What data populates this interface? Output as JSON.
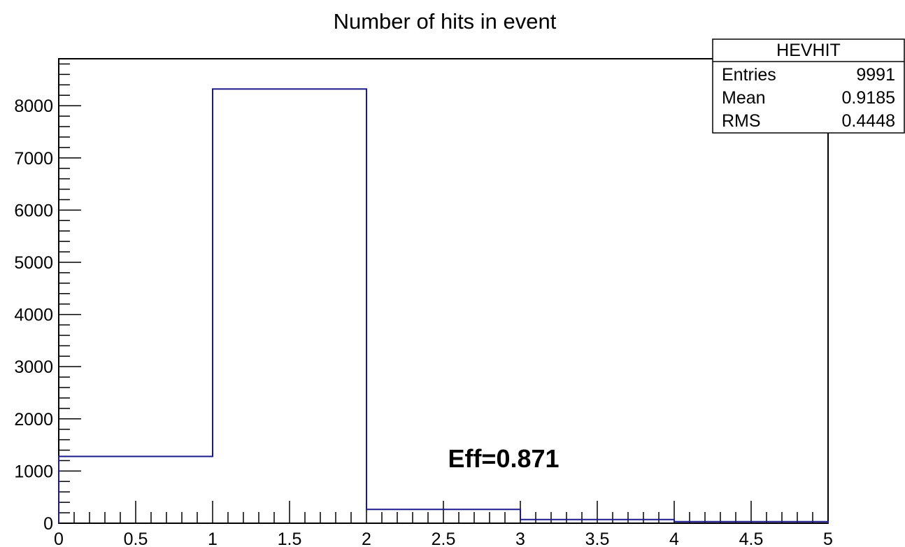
{
  "chart_data": {
    "type": "bar",
    "title": "Number of hits in event",
    "xlabel": "",
    "ylabel": "",
    "xlim": [
      0,
      5
    ],
    "ylim": [
      0,
      8900
    ],
    "bin_edges": [
      0,
      1,
      2,
      3,
      4,
      5
    ],
    "values": [
      1280,
      8320,
      265,
      70,
      30
    ],
    "x_ticks": [
      "0",
      "0.5",
      "1",
      "1.5",
      "2",
      "2.5",
      "3",
      "3.5",
      "4",
      "4.5",
      "5"
    ],
    "x_tick_values": [
      0,
      0.5,
      1,
      1.5,
      2,
      2.5,
      3,
      3.5,
      4,
      4.5,
      5
    ],
    "y_ticks": [
      "0",
      "1000",
      "2000",
      "3000",
      "4000",
      "5000",
      "6000",
      "7000",
      "8000"
    ],
    "y_tick_values": [
      0,
      1000,
      2000,
      3000,
      4000,
      5000,
      6000,
      7000,
      8000
    ],
    "line_color": "#1a1a8c",
    "grid": false,
    "annotation": "Eff=0.871",
    "stats_box": {
      "title": "HEVHIT",
      "placement": "top-right",
      "rows": [
        {
          "label": "Entries",
          "value": "9991"
        },
        {
          "label": "Mean",
          "value": "0.9185"
        },
        {
          "label": "RMS",
          "value": "0.4448"
        }
      ]
    }
  }
}
